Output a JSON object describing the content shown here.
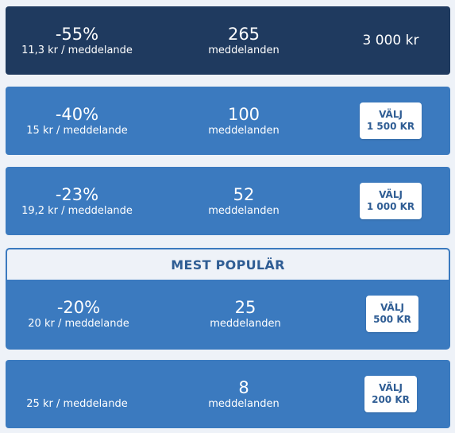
{
  "plans": [
    {
      "discount": "-55%",
      "per_message": "11,3 kr / meddelande",
      "count": "265",
      "count_label": "meddelanden",
      "price": "3 000 kr",
      "selected": true
    },
    {
      "discount": "-40%",
      "per_message": "15 kr / meddelande",
      "count": "100",
      "count_label": "meddelanden",
      "button_label": "VÄLJ",
      "price": "1 500 KR"
    },
    {
      "discount": "-23%",
      "per_message": "19,2 kr / meddelande",
      "count": "52",
      "count_label": "meddelanden",
      "button_label": "VÄLJ",
      "price": "1 000 KR"
    },
    {
      "badge": "MEST POPULÄR",
      "discount": "-20%",
      "per_message": "20 kr / meddelande",
      "count": "25",
      "count_label": "meddelanden",
      "button_label": "VÄLJ",
      "price": "500 KR"
    },
    {
      "discount": "",
      "per_message": "25 kr / meddelande",
      "count": "8",
      "count_label": "meddelanden",
      "button_label": "VÄLJ",
      "price": "200 KR"
    }
  ],
  "colors": {
    "selected_bg": "#1f3a5f",
    "plan_bg": "#3b7abf",
    "page_bg": "#eef2f8",
    "button_text": "#2f5d94"
  }
}
